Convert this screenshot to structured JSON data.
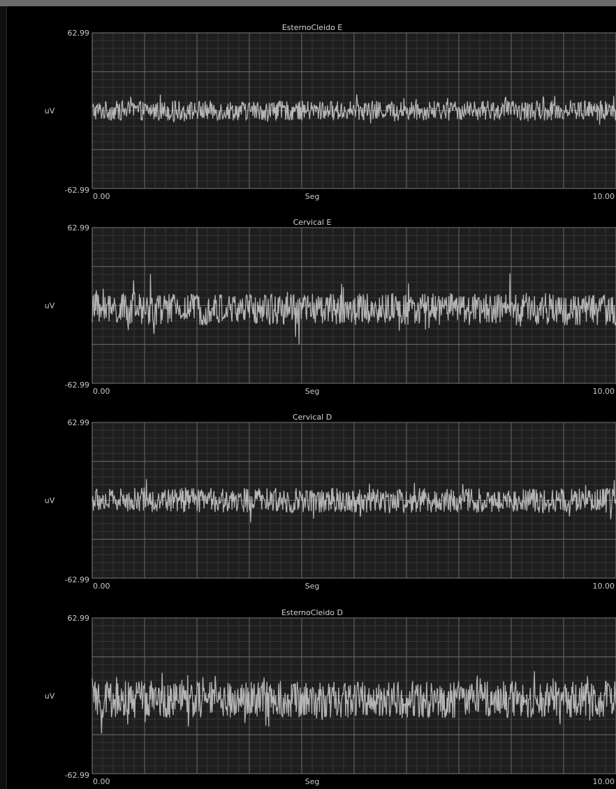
{
  "colors": {
    "background": "#000000",
    "plot_background": "#1e1e1e",
    "grid_major": "#6a6a6a",
    "grid_minor": "#353535",
    "signal": "#b4b4b4",
    "text": "#c9c9c9"
  },
  "chart_data": [
    {
      "type": "line",
      "title": "EsternoCleido E",
      "xlabel": "Seg",
      "ylabel": "uV",
      "y_max_label": "62.99",
      "y_min_label": "-62.99",
      "x_start_label": "0.00",
      "x_end_label": "10.00",
      "xlim": [
        0,
        10
      ],
      "ylim": [
        -62.99,
        62.99
      ],
      "grid": true,
      "signal": {
        "name": "",
        "baseline": 0,
        "typical_amplitude": 8,
        "peak_amplitude": 15,
        "points": 900
      }
    },
    {
      "type": "line",
      "title": "Cervical E",
      "xlabel": "Seg",
      "ylabel": "uV",
      "y_max_label": "62.99",
      "y_min_label": "-62.99",
      "x_start_label": "0.00",
      "x_end_label": "10.00",
      "xlim": [
        0,
        10
      ],
      "ylim": [
        -62.99,
        62.99
      ],
      "grid": true,
      "signal": {
        "name": "",
        "baseline": -3,
        "typical_amplitude": 13,
        "peak_amplitude": 31,
        "points": 900
      }
    },
    {
      "type": "line",
      "title": "Cervical D",
      "xlabel": "Seg",
      "ylabel": "uV",
      "y_max_label": "62.99",
      "y_min_label": "-62.99",
      "x_start_label": "0.00",
      "x_end_label": "10.00",
      "xlim": [
        0,
        10
      ],
      "ylim": [
        -62.99,
        62.99
      ],
      "grid": true,
      "signal": {
        "name": "",
        "baseline": 0,
        "typical_amplitude": 10,
        "peak_amplitude": 19,
        "points": 900
      }
    },
    {
      "type": "line",
      "title": "EsternoCleido D",
      "xlabel": "Seg",
      "ylabel": "uV",
      "y_max_label": "62.99",
      "y_min_label": "-62.99",
      "x_start_label": "0.00",
      "x_end_label": "10.00",
      "xlim": [
        0,
        10
      ],
      "ylim": [
        -62.99,
        62.99
      ],
      "grid": true,
      "signal": {
        "name": "",
        "baseline": -3,
        "typical_amplitude": 15,
        "peak_amplitude": 29,
        "points": 900
      }
    }
  ]
}
